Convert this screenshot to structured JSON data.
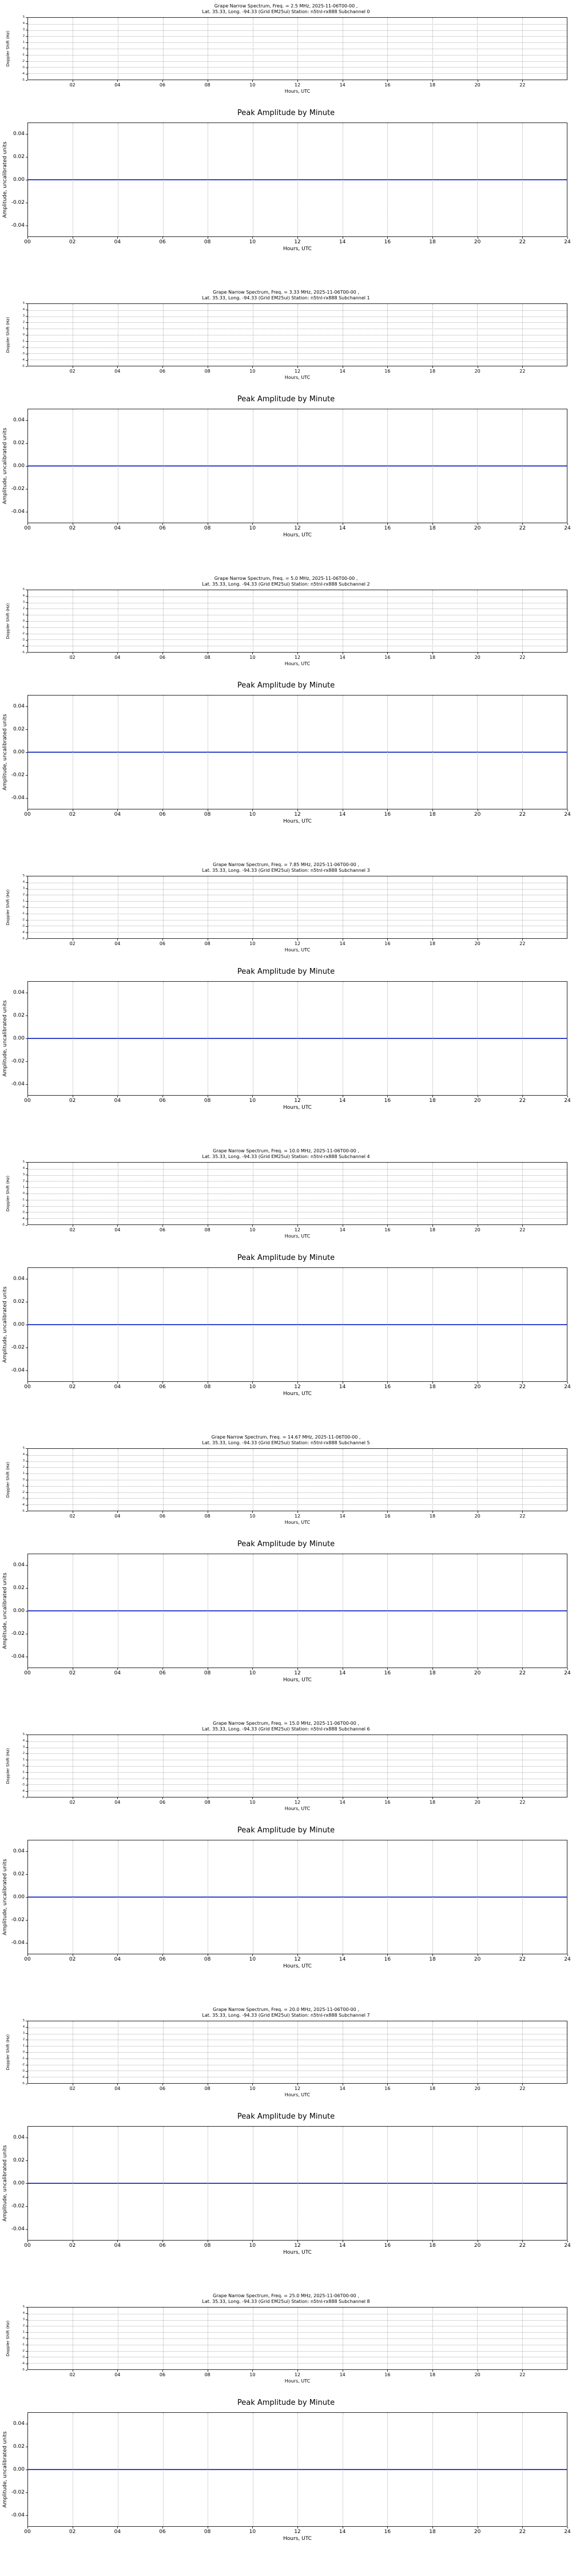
{
  "colors": {
    "background": "#ffffff",
    "amplitude_line": "#3344cc",
    "grid": "#b0b0b0",
    "spine": "#262626"
  },
  "spectrum_axes": {
    "ylabel": "Doppler Shift (Hz)",
    "xlabel": "Hours, UTC",
    "xlim": [
      0,
      24
    ],
    "ylim": [
      -5,
      5
    ],
    "xticks": [
      "02",
      "04",
      "06",
      "08",
      "10",
      "12",
      "14",
      "16",
      "18",
      "20",
      "22"
    ],
    "yticks": [
      "5",
      "4",
      "3",
      "2",
      "1",
      "0",
      "-1",
      "-2",
      "-3",
      "-4",
      "-5"
    ]
  },
  "amplitude_axes": {
    "title": "Peak Amplitude by Minute",
    "ylabel": "Amplitude, uncalibrated units",
    "xlabel": "Hours, UTC",
    "xlim": [
      0,
      24
    ],
    "ylim": [
      -0.05,
      0.05
    ],
    "xticks": [
      "00",
      "02",
      "04",
      "06",
      "08",
      "10",
      "12",
      "14",
      "16",
      "18",
      "20",
      "22",
      "24"
    ],
    "yticks": [
      "0.04",
      "0.02",
      "0.00",
      "-0.02",
      "-0.04"
    ]
  },
  "subchannels": [
    {
      "index": 0,
      "freq_mhz": "2.5",
      "spectrum_title_line1": "Grape Narrow Spectrum, Freq. = 2.5 MHz, 2025-11-06T00-00 ,",
      "spectrum_title_line2": "Lat.  35.33, Long. -94.33 (Grid EM25ui) Station: n5tnl-rx888 Subchannel 0"
    },
    {
      "index": 1,
      "freq_mhz": "3.33",
      "spectrum_title_line1": "Grape Narrow Spectrum, Freq. = 3.33 MHz, 2025-11-06T00-00 ,",
      "spectrum_title_line2": "Lat.  35.33, Long. -94.33 (Grid EM25ui) Station: n5tnl-rx888 Subchannel 1"
    },
    {
      "index": 2,
      "freq_mhz": "5.0",
      "spectrum_title_line1": "Grape Narrow Spectrum, Freq. = 5.0 MHz, 2025-11-06T00-00 ,",
      "spectrum_title_line2": "Lat.  35.33, Long. -94.33 (Grid EM25ui) Station: n5tnl-rx888 Subchannel 2"
    },
    {
      "index": 3,
      "freq_mhz": "7.85",
      "spectrum_title_line1": "Grape Narrow Spectrum, Freq. = 7.85 MHz, 2025-11-06T00-00 ,",
      "spectrum_title_line2": "Lat.  35.33, Long. -94.33 (Grid EM25ui) Station: n5tnl-rx888 Subchannel 3"
    },
    {
      "index": 4,
      "freq_mhz": "10.0",
      "spectrum_title_line1": "Grape Narrow Spectrum, Freq. = 10.0 MHz, 2025-11-06T00-00 ,",
      "spectrum_title_line2": "Lat.  35.33, Long. -94.33 (Grid EM25ui) Station: n5tnl-rx888 Subchannel 4"
    },
    {
      "index": 5,
      "freq_mhz": "14.67",
      "spectrum_title_line1": "Grape Narrow Spectrum, Freq. = 14.67 MHz, 2025-11-06T00-00 ,",
      "spectrum_title_line2": "Lat.  35.33, Long. -94.33 (Grid EM25ui) Station: n5tnl-rx888 Subchannel 5"
    },
    {
      "index": 6,
      "freq_mhz": "15.0",
      "spectrum_title_line1": "Grape Narrow Spectrum, Freq. = 15.0 MHz, 2025-11-06T00-00 ,",
      "spectrum_title_line2": "Lat.  35.33, Long. -94.33 (Grid EM25ui) Station: n5tnl-rx888 Subchannel 6"
    },
    {
      "index": 7,
      "freq_mhz": "20.0",
      "spectrum_title_line1": "Grape Narrow Spectrum, Freq. = 20.0 MHz, 2025-11-06T00-00 ,",
      "spectrum_title_line2": "Lat.  35.33, Long. -94.33 (Grid EM25ui) Station: n5tnl-rx888 Subchannel 7"
    },
    {
      "index": 8,
      "freq_mhz": "25.0",
      "spectrum_title_line1": "Grape Narrow Spectrum, Freq. = 25.0 MHz, 2025-11-06T00-00 ,",
      "spectrum_title_line2": "Lat.  35.33, Long. -94.33 (Grid EM25ui) Station: n5tnl-rx888 Subchannel 8"
    }
  ],
  "chart_data": [
    {
      "type": "heatmap",
      "subchannel": 0,
      "freq_mhz": 2.5,
      "title": "Grape Narrow Spectrum, Freq. = 2.5 MHz, 2025-11-06T00-00 , Lat. 35.33, Long. -94.33 (Grid EM25ui) Station: n5tnl-rx888 Subchannel 0",
      "xlabel": "Hours, UTC",
      "ylabel": "Doppler Shift (Hz)",
      "xlim": [
        0,
        24
      ],
      "ylim": [
        -5,
        5
      ],
      "grid": true,
      "values": [],
      "note": "empty axes - no spectrum data visible"
    },
    {
      "type": "line",
      "subchannel": 0,
      "freq_mhz": 2.5,
      "title": "Peak Amplitude by Minute",
      "xlabel": "Hours, UTC",
      "ylabel": "Amplitude, uncalibrated units",
      "xlim": [
        0,
        24
      ],
      "ylim": [
        -0.05,
        0.05
      ],
      "grid": true,
      "series": [
        {
          "name": "peak_amplitude",
          "x": [
            0,
            24
          ],
          "y": [
            0.0,
            0.0
          ]
        }
      ]
    },
    {
      "type": "heatmap",
      "subchannel": 1,
      "freq_mhz": 3.33,
      "title": "Grape Narrow Spectrum, Freq. = 3.33 MHz, 2025-11-06T00-00 , Lat. 35.33, Long. -94.33 (Grid EM25ui) Station: n5tnl-rx888 Subchannel 1",
      "xlabel": "Hours, UTC",
      "ylabel": "Doppler Shift (Hz)",
      "xlim": [
        0,
        24
      ],
      "ylim": [
        -5,
        5
      ],
      "grid": true,
      "values": [],
      "note": "empty axes - no spectrum data visible"
    },
    {
      "type": "line",
      "subchannel": 1,
      "freq_mhz": 3.33,
      "title": "Peak Amplitude by Minute",
      "xlabel": "Hours, UTC",
      "ylabel": "Amplitude, uncalibrated units",
      "xlim": [
        0,
        24
      ],
      "ylim": [
        -0.05,
        0.05
      ],
      "grid": true,
      "series": [
        {
          "name": "peak_amplitude",
          "x": [
            0,
            24
          ],
          "y": [
            0.0,
            0.0
          ]
        }
      ]
    },
    {
      "type": "heatmap",
      "subchannel": 2,
      "freq_mhz": 5.0,
      "title": "Grape Narrow Spectrum, Freq. = 5.0 MHz, 2025-11-06T00-00 , Lat. 35.33, Long. -94.33 (Grid EM25ui) Station: n5tnl-rx888 Subchannel 2",
      "xlabel": "Hours, UTC",
      "ylabel": "Doppler Shift (Hz)",
      "xlim": [
        0,
        24
      ],
      "ylim": [
        -5,
        5
      ],
      "grid": true,
      "values": [],
      "note": "empty axes - no spectrum data visible"
    },
    {
      "type": "line",
      "subchannel": 2,
      "freq_mhz": 5.0,
      "title": "Peak Amplitude by Minute",
      "xlabel": "Hours, UTC",
      "ylabel": "Amplitude, uncalibrated units",
      "xlim": [
        0,
        24
      ],
      "ylim": [
        -0.05,
        0.05
      ],
      "grid": true,
      "series": [
        {
          "name": "peak_amplitude",
          "x": [
            0,
            24
          ],
          "y": [
            0.0,
            0.0
          ]
        }
      ]
    },
    {
      "type": "heatmap",
      "subchannel": 3,
      "freq_mhz": 7.85,
      "title": "Grape Narrow Spectrum, Freq. = 7.85 MHz, 2025-11-06T00-00 , Lat. 35.33, Long. -94.33 (Grid EM25ui) Station: n5tnl-rx888 Subchannel 3",
      "xlabel": "Hours, UTC",
      "ylabel": "Doppler Shift (Hz)",
      "xlim": [
        0,
        24
      ],
      "ylim": [
        -5,
        5
      ],
      "grid": true,
      "values": [],
      "note": "empty axes - no spectrum data visible"
    },
    {
      "type": "line",
      "subchannel": 3,
      "freq_mhz": 7.85,
      "title": "Peak Amplitude by Minute",
      "xlabel": "Hours, UTC",
      "ylabel": "Amplitude, uncalibrated units",
      "xlim": [
        0,
        24
      ],
      "ylim": [
        -0.05,
        0.05
      ],
      "grid": true,
      "series": [
        {
          "name": "peak_amplitude",
          "x": [
            0,
            24
          ],
          "y": [
            0.0,
            0.0
          ]
        }
      ]
    },
    {
      "type": "heatmap",
      "subchannel": 4,
      "freq_mhz": 10.0,
      "title": "Grape Narrow Spectrum, Freq. = 10.0 MHz, 2025-11-06T00-00 , Lat. 35.33, Long. -94.33 (Grid EM25ui) Station: n5tnl-rx888 Subchannel 4",
      "xlabel": "Hours, UTC",
      "ylabel": "Doppler Shift (Hz)",
      "xlim": [
        0,
        24
      ],
      "ylim": [
        -5,
        5
      ],
      "grid": true,
      "values": [],
      "note": "empty axes - no spectrum data visible"
    },
    {
      "type": "line",
      "subchannel": 4,
      "freq_mhz": 10.0,
      "title": "Peak Amplitude by Minute",
      "xlabel": "Hours, UTC",
      "ylabel": "Amplitude, uncalibrated units",
      "xlim": [
        0,
        24
      ],
      "ylim": [
        -0.05,
        0.05
      ],
      "grid": true,
      "series": [
        {
          "name": "peak_amplitude",
          "x": [
            0,
            24
          ],
          "y": [
            0.0,
            0.0
          ]
        }
      ]
    },
    {
      "type": "heatmap",
      "subchannel": 5,
      "freq_mhz": 14.67,
      "title": "Grape Narrow Spectrum, Freq. = 14.67 MHz, 2025-11-06T00-00 , Lat. 35.33, Long. -94.33 (Grid EM25ui) Station: n5tnl-rx888 Subchannel 5",
      "xlabel": "Hours, UTC",
      "ylabel": "Doppler Shift (Hz)",
      "xlim": [
        0,
        24
      ],
      "ylim": [
        -5,
        5
      ],
      "grid": true,
      "values": [],
      "note": "empty axes - no spectrum data visible"
    },
    {
      "type": "line",
      "subchannel": 5,
      "freq_mhz": 14.67,
      "title": "Peak Amplitude by Minute",
      "xlabel": "Hours, UTC",
      "ylabel": "Amplitude, uncalibrated units",
      "xlim": [
        0,
        24
      ],
      "ylim": [
        -0.05,
        0.05
      ],
      "grid": true,
      "series": [
        {
          "name": "peak_amplitude",
          "x": [
            0,
            24
          ],
          "y": [
            0.0,
            0.0
          ]
        }
      ]
    },
    {
      "type": "heatmap",
      "subchannel": 6,
      "freq_mhz": 15.0,
      "title": "Grape Narrow Spectrum, Freq. = 15.0 MHz, 2025-11-06T00-00 , Lat. 35.33, Long. -94.33 (Grid EM25ui) Station: n5tnl-rx888 Subchannel 6",
      "xlabel": "Hours, UTC",
      "ylabel": "Doppler Shift (Hz)",
      "xlim": [
        0,
        24
      ],
      "ylim": [
        -5,
        5
      ],
      "grid": true,
      "values": [],
      "note": "empty axes - no spectrum data visible"
    },
    {
      "type": "line",
      "subchannel": 6,
      "freq_mhz": 15.0,
      "title": "Peak Amplitude by Minute",
      "xlabel": "Hours, UTC",
      "ylabel": "Amplitude, uncalibrated units",
      "xlim": [
        0,
        24
      ],
      "ylim": [
        -0.05,
        0.05
      ],
      "grid": true,
      "series": [
        {
          "name": "peak_amplitude",
          "x": [
            0,
            24
          ],
          "y": [
            0.0,
            0.0
          ]
        }
      ]
    },
    {
      "type": "heatmap",
      "subchannel": 7,
      "freq_mhz": 20.0,
      "title": "Grape Narrow Spectrum, Freq. = 20.0 MHz, 2025-11-06T00-00 , Lat. 35.33, Long. -94.33 (Grid EM25ui) Station: n5tnl-rx888 Subchannel 7",
      "xlabel": "Hours, UTC",
      "ylabel": "Doppler Shift (Hz)",
      "xlim": [
        0,
        24
      ],
      "ylim": [
        -5,
        5
      ],
      "grid": true,
      "values": [],
      "note": "empty axes - no spectrum data visible"
    },
    {
      "type": "line",
      "subchannel": 7,
      "freq_mhz": 20.0,
      "title": "Peak Amplitude by Minute",
      "xlabel": "Hours, UTC",
      "ylabel": "Amplitude, uncalibrated units",
      "xlim": [
        0,
        24
      ],
      "ylim": [
        -0.05,
        0.05
      ],
      "grid": true,
      "series": [
        {
          "name": "peak_amplitude",
          "x": [
            0,
            24
          ],
          "y": [
            0.0,
            0.0
          ]
        }
      ]
    },
    {
      "type": "heatmap",
      "subchannel": 8,
      "freq_mhz": 25.0,
      "title": "Grape Narrow Spectrum, Freq. = 25.0 MHz, 2025-11-06T00-00 , Lat. 35.33, Long. -94.33 (Grid EM25ui) Station: n5tnl-rx888 Subchannel 8",
      "xlabel": "Hours, UTC",
      "ylabel": "Doppler Shift (Hz)",
      "xlim": [
        0,
        24
      ],
      "ylim": [
        -5,
        5
      ],
      "grid": true,
      "values": [],
      "note": "empty axes - no spectrum data visible"
    },
    {
      "type": "line",
      "subchannel": 8,
      "freq_mhz": 25.0,
      "title": "Peak Amplitude by Minute",
      "xlabel": "Hours, UTC",
      "ylabel": "Amplitude, uncalibrated units",
      "xlim": [
        0,
        24
      ],
      "ylim": [
        -0.05,
        0.05
      ],
      "grid": true,
      "series": [
        {
          "name": "peak_amplitude",
          "x": [
            0,
            24
          ],
          "y": [
            0.0,
            0.0
          ]
        }
      ]
    }
  ]
}
